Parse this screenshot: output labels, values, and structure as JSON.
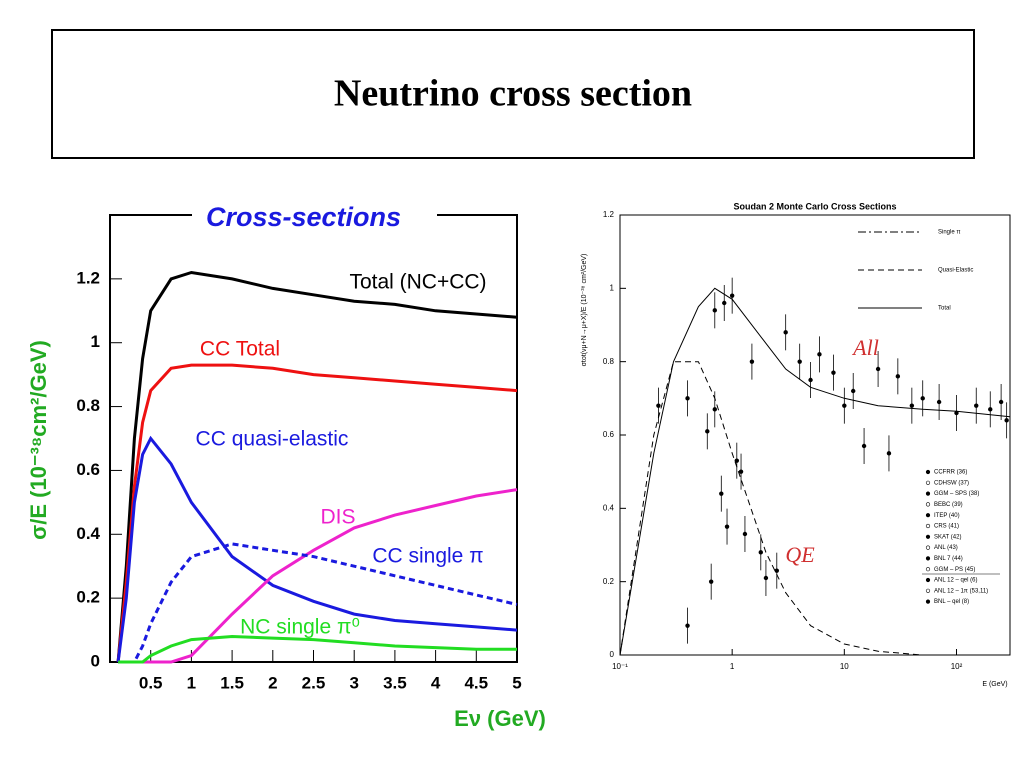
{
  "title": "Neutrino cross section",
  "chart_data": [
    {
      "type": "line",
      "title": "Cross-sections",
      "x_label": "Eν (GeV)",
      "y_label": "σ/E (10⁻³⁸cm²/GeV)",
      "x": [
        0.1,
        0.2,
        0.3,
        0.4,
        0.5,
        0.75,
        1,
        1.5,
        2,
        2.5,
        3,
        3.5,
        4,
        4.5,
        5
      ],
      "series": [
        {
          "name": "Total (NC+CC)",
          "color": "#000000",
          "dash": "solid",
          "values": [
            0,
            0.3,
            0.7,
            0.95,
            1.1,
            1.2,
            1.22,
            1.2,
            1.17,
            1.15,
            1.13,
            1.12,
            1.1,
            1.09,
            1.08
          ]
        },
        {
          "name": "CC Total",
          "color": "#ee1111",
          "dash": "solid",
          "values": [
            0,
            0.25,
            0.55,
            0.75,
            0.85,
            0.92,
            0.93,
            0.93,
            0.92,
            0.9,
            0.89,
            0.88,
            0.87,
            0.86,
            0.85
          ]
        },
        {
          "name": "CC quasi-elastic",
          "color": "#1a1adf",
          "dash": "solid",
          "values": [
            0,
            0.2,
            0.5,
            0.65,
            0.7,
            0.62,
            0.5,
            0.33,
            0.24,
            0.19,
            0.15,
            0.13,
            0.12,
            0.11,
            0.1
          ]
        },
        {
          "name": "DIS",
          "color": "#ee22cc",
          "dash": "solid",
          "values": [
            0,
            0,
            0,
            0,
            0,
            0,
            0.02,
            0.15,
            0.27,
            0.35,
            0.42,
            0.46,
            0.49,
            0.52,
            0.54
          ]
        },
        {
          "name": "CC single π",
          "color": "#1a1adf",
          "dash": "dashed",
          "values": [
            0,
            0,
            0,
            0.05,
            0.12,
            0.25,
            0.33,
            0.37,
            0.35,
            0.33,
            0.3,
            0.27,
            0.24,
            0.21,
            0.18
          ]
        },
        {
          "name": "NC single π⁰",
          "color": "#22dd22",
          "dash": "solid",
          "values": [
            0,
            0,
            0,
            0,
            0.02,
            0.05,
            0.07,
            0.08,
            0.075,
            0.07,
            0.06,
            0.05,
            0.045,
            0.04,
            0.04
          ]
        }
      ],
      "xlim": [
        0,
        5
      ],
      "xticks": [
        0.5,
        1,
        1.5,
        2,
        2.5,
        3,
        3.5,
        4,
        4.5,
        5
      ],
      "ylim": [
        0,
        1.4
      ],
      "yticks": [
        0,
        0.2,
        0.4,
        0.6,
        0.8,
        1,
        1.2
      ]
    },
    {
      "type": "line",
      "title": "Soudan 2 Monte Carlo Cross Sections",
      "x_label": "E (GeV)",
      "y_label": "σtot(νμ+N→μ+X)/E  (10⁻³⁸ cm²/GeV)",
      "log_x": true,
      "x": [
        0.1,
        0.2,
        0.3,
        0.5,
        0.7,
        1,
        2,
        3,
        5,
        10,
        20,
        50,
        100,
        300
      ],
      "series": [
        {
          "name": "Single π",
          "color": "#000000",
          "dash": "dashdot",
          "values": [
            null,
            null,
            null,
            null,
            null,
            null,
            null,
            null,
            null,
            null,
            null,
            null,
            null,
            null
          ]
        },
        {
          "name": "Quasi-Elastic",
          "color": "#000000",
          "dash": "dashed",
          "values": [
            0,
            0.6,
            0.8,
            0.8,
            0.7,
            0.55,
            0.28,
            0.17,
            0.08,
            0.03,
            0.01,
            0,
            0,
            0
          ]
        },
        {
          "name": "Total",
          "color": "#000000",
          "dash": "solid",
          "values": [
            0,
            0.55,
            0.8,
            0.95,
            1.0,
            0.97,
            0.85,
            0.78,
            0.73,
            0.7,
            0.68,
            0.67,
            0.665,
            0.65
          ]
        },
        {
          "color": "#000000",
          "style": "markers",
          "x": [
            0.22,
            0.4,
            0.4,
            0.6,
            0.65,
            0.7,
            0.7,
            0.8,
            0.85,
            0.9,
            1.0,
            1.1,
            1.2,
            1.3,
            1.5,
            1.8,
            2,
            2.5,
            3,
            4,
            5,
            6,
            8,
            10,
            12,
            15,
            20,
            25,
            30,
            40,
            50,
            70,
            100,
            150,
            200,
            250,
            280
          ],
          "values": [
            0.68,
            0.08,
            0.7,
            0.61,
            0.2,
            0.94,
            0.67,
            0.44,
            0.96,
            0.35,
            0.98,
            0.53,
            0.5,
            0.33,
            0.8,
            0.28,
            0.21,
            0.23,
            0.88,
            0.8,
            0.75,
            0.82,
            0.77,
            0.68,
            0.72,
            0.57,
            0.78,
            0.55,
            0.76,
            0.68,
            0.7,
            0.69,
            0.66,
            0.68,
            0.67,
            0.69,
            0.64
          ]
        }
      ],
      "experiments": [
        "CCFRR (36)",
        "CDHSW (37)",
        "GGM – SPS (38)",
        "BEBC (39)",
        "ITEP (40)",
        "CRS (41)",
        "SKAT (42)",
        "ANL (43)",
        "BNL 7 (44)",
        "GGM – PS (45)",
        "ANL 12 – qel (6)",
        "ANL 12 – 1π (53,11)",
        "BNL – qel (8)"
      ],
      "annotations": [
        "All",
        "QE"
      ],
      "xlim": [
        0.1,
        300
      ],
      "xticks": [
        {
          "value": 0.1,
          "label": "10⁻¹"
        },
        1,
        10,
        {
          "value": 100,
          "label": "10²"
        }
      ],
      "ylim": [
        0,
        1.2
      ],
      "yticks": [
        0,
        0.2,
        0.4,
        0.6,
        0.8,
        1,
        1.2
      ]
    }
  ]
}
